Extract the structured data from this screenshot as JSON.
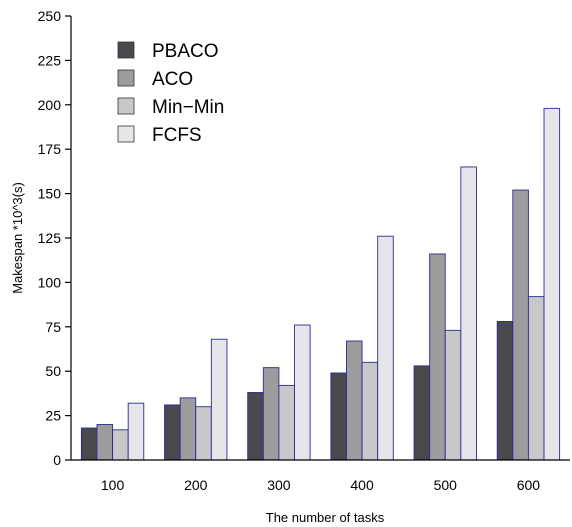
{
  "chart_data": {
    "type": "bar",
    "xlabel": "The number of  tasks",
    "ylabel": "Makespan *10^3(s)",
    "ylim": [
      0,
      250
    ],
    "yticks": [
      0,
      25,
      50,
      75,
      100,
      125,
      150,
      175,
      200,
      225,
      250
    ],
    "categories": [
      "100",
      "200",
      "300",
      "400",
      "500",
      "600"
    ],
    "grid": false,
    "legend_position": "top-left",
    "series": [
      {
        "name": "PBACO",
        "color": "#4a4a4e",
        "values": [
          18,
          31,
          38,
          49,
          53,
          78
        ]
      },
      {
        "name": "ACO",
        "color": "#9c9c9c",
        "values": [
          20,
          35,
          52,
          67,
          116,
          152
        ]
      },
      {
        "name": "Min−Min",
        "color": "#c8c8c8",
        "values": [
          17,
          30,
          42,
          55,
          73,
          92
        ]
      },
      {
        "name": "FCFS",
        "color": "#e6e6e8",
        "values": [
          32,
          68,
          76,
          126,
          165,
          198
        ]
      }
    ],
    "bar_edge_color": "#2b2b9a"
  }
}
